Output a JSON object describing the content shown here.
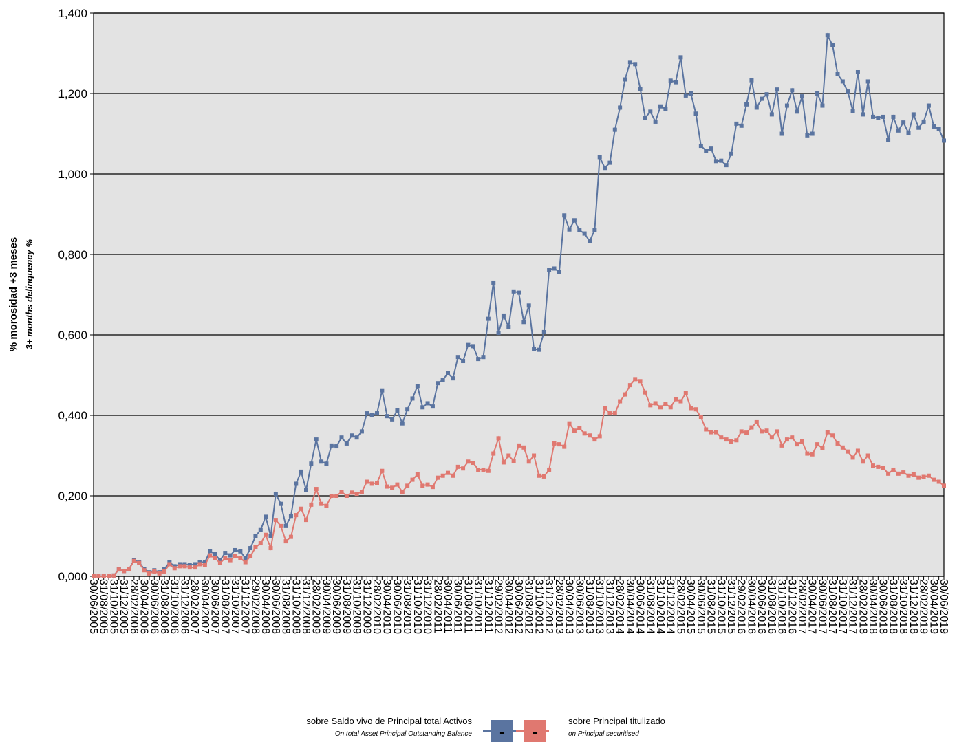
{
  "chart_data": {
    "type": "line",
    "y_label": "% morosidad +3 meses",
    "y_label_en": "3+ months delinquency %",
    "legend_symbol": "-",
    "categories": [
      "30/06/2005",
      null,
      "31/08/2005",
      null,
      "31/10/2005",
      null,
      "31/12/2005",
      null,
      "28/02/2006",
      null,
      "30/04/2006",
      null,
      "30/06/2006",
      null,
      "31/08/2006",
      null,
      "31/10/2006",
      null,
      "31/12/2006",
      null,
      "28/02/2007",
      null,
      "30/04/2007",
      null,
      "30/06/2007",
      null,
      "31/08/2007",
      null,
      "31/10/2007",
      null,
      "31/12/2007",
      null,
      "29/02/2008",
      null,
      "30/04/2008",
      null,
      "30/06/2008",
      null,
      "31/08/2008",
      null,
      "31/10/2008",
      null,
      "31/12/2008",
      null,
      "28/02/2009",
      null,
      "30/04/2009",
      null,
      "30/06/2009",
      null,
      "31/08/2009",
      null,
      "31/10/2009",
      null,
      "31/12/2009",
      null,
      "28/02/2010",
      null,
      "30/04/2010",
      null,
      "30/06/2010",
      null,
      "31/08/2010",
      null,
      "31/10/2010",
      null,
      "31/12/2010",
      null,
      "28/02/2011",
      null,
      "30/04/2011",
      null,
      "30/06/2011",
      null,
      "31/08/2011",
      null,
      "31/10/2011",
      null,
      "31/12/2011",
      null,
      "29/02/2012",
      null,
      "30/04/2012",
      null,
      "30/06/2012",
      null,
      "31/08/2012",
      null,
      "31/10/2012",
      null,
      "31/12/2012",
      null,
      "28/02/2013",
      null,
      "30/04/2013",
      null,
      "30/06/2013",
      null,
      "31/08/2013",
      null,
      "31/10/2013",
      null,
      "31/12/2013",
      null,
      "28/02/2014",
      null,
      "30/04/2014",
      null,
      "30/06/2014",
      null,
      "31/08/2014",
      null,
      "31/10/2014",
      null,
      "31/12/2014",
      null,
      "28/02/2015",
      null,
      "30/04/2015",
      null,
      "30/06/2015",
      null,
      "31/08/2015",
      null,
      "31/10/2015",
      null,
      "31/12/2015",
      null,
      "29/02/2016",
      null,
      "30/04/2016",
      null,
      "30/06/2016",
      null,
      "31/08/2016",
      null,
      "31/10/2016",
      null,
      "31/12/2016",
      null,
      "28/02/2017",
      null,
      "30/04/2017",
      null,
      "30/06/2017",
      null,
      "31/08/2017",
      null,
      "31/10/2017",
      null,
      "31/12/2017",
      null,
      "28/02/2018",
      null,
      "30/04/2018",
      null,
      "30/06/2018",
      null,
      "31/08/2018",
      null,
      "31/10/2018",
      null,
      "31/12/2018",
      null,
      "28/02/2019",
      null,
      "30/04/2019",
      null,
      "30/06/2019"
    ],
    "series": [
      {
        "name": "sobre Saldo vivo de Principal total Activos",
        "name_en": "On total Asset Principal Outstanding Balance",
        "color": "#5a74a0",
        "values": [
          0,
          0,
          0,
          0,
          0.002,
          0.017,
          0.013,
          0.018,
          0.04,
          0.035,
          0.018,
          0.01,
          0.015,
          0.01,
          0.018,
          0.035,
          0.025,
          0.03,
          0.03,
          0.028,
          0.03,
          0.035,
          0.035,
          0.063,
          0.055,
          0.04,
          0.058,
          0.052,
          0.065,
          0.062,
          0.045,
          0.07,
          0.1,
          0.115,
          0.148,
          0.1,
          0.205,
          0.18,
          0.125,
          0.15,
          0.23,
          0.26,
          0.215,
          0.28,
          0.34,
          0.285,
          0.28,
          0.325,
          0.323,
          0.345,
          0.33,
          0.35,
          0.345,
          0.36,
          0.405,
          0.4,
          0.405,
          0.462,
          0.398,
          0.39,
          0.412,
          0.38,
          0.415,
          0.442,
          0.473,
          0.42,
          0.43,
          0.422,
          0.48,
          0.488,
          0.505,
          0.492,
          0.545,
          0.535,
          0.575,
          0.572,
          0.54,
          0.545,
          0.64,
          0.73,
          0.605,
          0.648,
          0.62,
          0.708,
          0.705,
          0.632,
          0.673,
          0.565,
          0.563,
          0.607,
          0.762,
          0.765,
          0.757,
          0.897,
          0.862,
          0.885,
          0.86,
          0.852,
          0.833,
          0.86,
          1.042,
          1.015,
          1.028,
          1.11,
          1.165,
          1.235,
          1.278,
          1.273,
          1.212,
          1.14,
          1.155,
          1.13,
          1.168,
          1.162,
          1.232,
          1.228,
          1.29,
          1.195,
          1.2,
          1.15,
          1.07,
          1.058,
          1.063,
          1.032,
          1.033,
          1.022,
          1.05,
          1.125,
          1.12,
          1.173,
          1.233,
          1.165,
          1.187,
          1.198,
          1.148,
          1.21,
          1.1,
          1.17,
          1.208,
          1.155,
          1.193,
          1.096,
          1.1,
          1.2,
          1.17,
          1.345,
          1.32,
          1.248,
          1.23,
          1.205,
          1.157,
          1.253,
          1.148,
          1.23,
          1.142,
          1.14,
          1.142,
          1.085,
          1.142,
          1.108,
          1.128,
          1.102,
          1.148,
          1.115,
          1.13,
          1.17,
          1.118,
          1.112,
          1.083
        ]
      },
      {
        "name": "sobre Principal titulizado",
        "name_en": "on Principal securitised",
        "color": "#e07870",
        "values": [
          0,
          0,
          0,
          0,
          0.002,
          0.017,
          0.013,
          0.018,
          0.038,
          0.033,
          0.015,
          0.007,
          0.012,
          0.007,
          0.012,
          0.03,
          0.02,
          0.025,
          0.025,
          0.022,
          0.022,
          0.03,
          0.028,
          0.052,
          0.045,
          0.033,
          0.045,
          0.04,
          0.05,
          0.045,
          0.035,
          0.05,
          0.072,
          0.082,
          0.103,
          0.07,
          0.14,
          0.125,
          0.087,
          0.098,
          0.152,
          0.168,
          0.14,
          0.178,
          0.217,
          0.18,
          0.175,
          0.2,
          0.2,
          0.21,
          0.2,
          0.208,
          0.205,
          0.21,
          0.235,
          0.23,
          0.232,
          0.262,
          0.223,
          0.22,
          0.228,
          0.21,
          0.225,
          0.24,
          0.253,
          0.225,
          0.228,
          0.222,
          0.245,
          0.25,
          0.257,
          0.25,
          0.272,
          0.268,
          0.285,
          0.282,
          0.265,
          0.265,
          0.262,
          0.305,
          0.343,
          0.283,
          0.3,
          0.287,
          0.325,
          0.32,
          0.285,
          0.3,
          0.25,
          0.248,
          0.265,
          0.33,
          0.328,
          0.322,
          0.38,
          0.362,
          0.368,
          0.355,
          0.35,
          0.34,
          0.348,
          0.418,
          0.405,
          0.405,
          0.435,
          0.452,
          0.475,
          0.49,
          0.485,
          0.457,
          0.425,
          0.43,
          0.42,
          0.428,
          0.42,
          0.44,
          0.435,
          0.455,
          0.418,
          0.415,
          0.395,
          0.365,
          0.358,
          0.358,
          0.345,
          0.34,
          0.335,
          0.338,
          0.36,
          0.357,
          0.37,
          0.383,
          0.36,
          0.362,
          0.345,
          0.36,
          0.325,
          0.34,
          0.345,
          0.328,
          0.335,
          0.305,
          0.303,
          0.328,
          0.318,
          0.358,
          0.35,
          0.33,
          0.32,
          0.31,
          0.295,
          0.312,
          0.285,
          0.3,
          0.275,
          0.272,
          0.27,
          0.255,
          0.265,
          0.255,
          0.258,
          0.25,
          0.253,
          0.245,
          0.247,
          0.25,
          0.24,
          0.235,
          0.225
        ]
      }
    ],
    "ylim": [
      0,
      1.4
    ],
    "yticks": [
      {
        "value": 0,
        "label": "0,000"
      },
      {
        "value": 0.2,
        "label": "0,200"
      },
      {
        "value": 0.4,
        "label": "0,400"
      },
      {
        "value": 0.6,
        "label": "0,600"
      },
      {
        "value": 0.8,
        "label": "0,800"
      },
      {
        "value": 1.0,
        "label": "1,000"
      },
      {
        "value": 1.2,
        "label": "1,200"
      },
      {
        "value": 1.4,
        "label": "1,400"
      }
    ],
    "grid": true,
    "legend": "bottom"
  }
}
